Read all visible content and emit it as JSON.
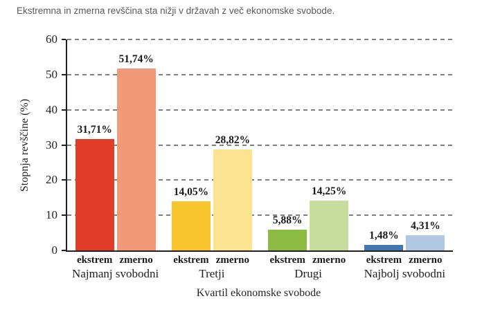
{
  "chart_data": {
    "type": "bar",
    "title": "Ekstremna in zmerna revščina sta nižji v državah z več ekonomske svobode.",
    "xlabel": "Kvartil ekonomske svobode",
    "ylabel": "Stopnja revščine (%)",
    "ylim": [
      0,
      60
    ],
    "yticks": [
      0,
      10,
      20,
      30,
      40,
      50,
      60
    ],
    "grid": "horizontal-dashed",
    "legend": "none",
    "decimal_separator": ",",
    "categories": [
      "Najmanj svobodni",
      "Tretji",
      "Drugi",
      "Najbolj svobodni"
    ],
    "series": [
      {
        "name": "ekstrem",
        "values": [
          31.71,
          14.05,
          5.88,
          1.48
        ],
        "value_labels": [
          "31,71%",
          "14,05%",
          "5,88%",
          "1,48%"
        ],
        "colors": [
          "#e23c28",
          "#f9c52d",
          "#8cbb44",
          "#4278ae"
        ]
      },
      {
        "name": "zmerno",
        "values": [
          51.74,
          28.82,
          14.25,
          4.31
        ],
        "value_labels": [
          "51,74%",
          "28,82%",
          "14,25%",
          "4,31%"
        ],
        "colors": [
          "#f2997a",
          "#fbe392",
          "#c7dd9d",
          "#b2c8e2"
        ]
      }
    ],
    "colors_note": {
      "axis": "#231f20",
      "gridline": "#7f7f7f",
      "caption_text": "#58595b"
    }
  }
}
